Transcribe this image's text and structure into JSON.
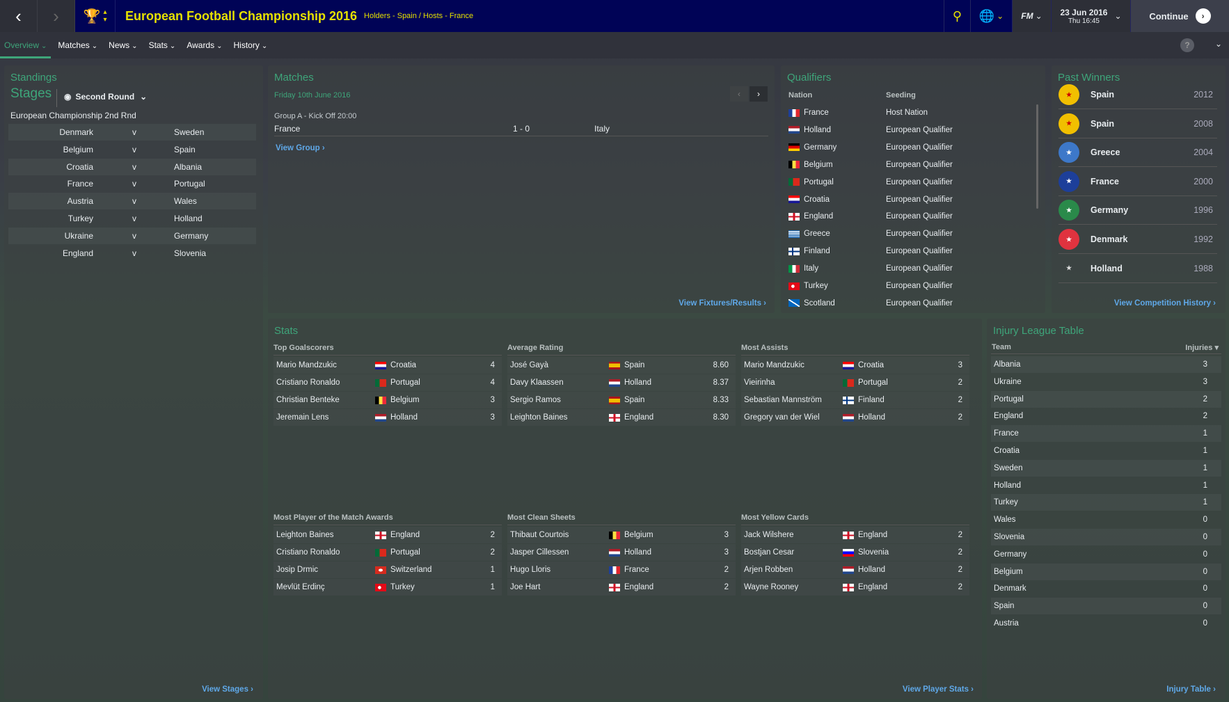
{
  "header": {
    "title": "European Football Championship 2016",
    "subtitle": "Holders - Spain / Hosts - France",
    "date": "23 Jun 2016",
    "time": "Thu 16:45",
    "continue_label": "Continue",
    "fm_label": "FM"
  },
  "tabs": [
    {
      "label": "Overview"
    },
    {
      "label": "Matches"
    },
    {
      "label": "News"
    },
    {
      "label": "Stats"
    },
    {
      "label": "Awards"
    },
    {
      "label": "History"
    }
  ],
  "colors": {
    "accent": "#3ea57a",
    "header_bg": "#000356",
    "title": "#e5e000",
    "link": "#5fa8e8"
  },
  "standings": {
    "title": "Standings",
    "stages_label": "Stages",
    "stage_select": "Second Round",
    "competition": "European Championship 2nd Rnd",
    "vs": "v",
    "fixtures": [
      [
        "Denmark",
        "Sweden"
      ],
      [
        "Belgium",
        "Spain"
      ],
      [
        "Croatia",
        "Albania"
      ],
      [
        "France",
        "Portugal"
      ],
      [
        "Austria",
        "Wales"
      ],
      [
        "Turkey",
        "Holland"
      ],
      [
        "Ukraine",
        "Germany"
      ],
      [
        "England",
        "Slovenia"
      ]
    ],
    "link": "View Stages"
  },
  "matches": {
    "title": "Matches",
    "date": "Friday 10th June 2016",
    "group": "Group A - Kick Off 20:00",
    "home": "France",
    "score": "1 - 0",
    "away": "Italy",
    "view_group": "View Group",
    "link": "View Fixtures/Results"
  },
  "qualifiers": {
    "title": "Qualifiers",
    "col_nation": "Nation",
    "col_seeding": "Seeding",
    "rows": [
      [
        "France",
        "Host Nation"
      ],
      [
        "Holland",
        "European Qualifier"
      ],
      [
        "Germany",
        "European Qualifier"
      ],
      [
        "Belgium",
        "European Qualifier"
      ],
      [
        "Portugal",
        "European Qualifier"
      ],
      [
        "Croatia",
        "European Qualifier"
      ],
      [
        "England",
        "European Qualifier"
      ],
      [
        "Greece",
        "European Qualifier"
      ],
      [
        "Finland",
        "European Qualifier"
      ],
      [
        "Italy",
        "European Qualifier"
      ],
      [
        "Turkey",
        "European Qualifier"
      ],
      [
        "Scotland",
        "European Qualifier"
      ]
    ]
  },
  "past_winners": {
    "title": "Past Winners",
    "rows": [
      [
        "Spain",
        "2012"
      ],
      [
        "Spain",
        "2008"
      ],
      [
        "Greece",
        "2004"
      ],
      [
        "France",
        "2000"
      ],
      [
        "Germany",
        "1996"
      ],
      [
        "Denmark",
        "1992"
      ],
      [
        "Holland",
        "1988"
      ]
    ],
    "link": "View Competition History"
  },
  "stats": {
    "title": "Stats",
    "link": "View Player Stats",
    "tables": [
      {
        "title": "Top Goalscorers",
        "rows": [
          [
            "Mario Mandzukic",
            "Croatia",
            "4"
          ],
          [
            "Cristiano Ronaldo",
            "Portugal",
            "4"
          ],
          [
            "Christian Benteke",
            "Belgium",
            "3"
          ],
          [
            "Jeremain Lens",
            "Holland",
            "3"
          ]
        ]
      },
      {
        "title": "Average Rating",
        "rows": [
          [
            "José Gayà",
            "Spain",
            "8.60"
          ],
          [
            "Davy Klaassen",
            "Holland",
            "8.37"
          ],
          [
            "Sergio Ramos",
            "Spain",
            "8.33"
          ],
          [
            "Leighton Baines",
            "England",
            "8.30"
          ]
        ]
      },
      {
        "title": "Most Assists",
        "rows": [
          [
            "Mario Mandzukic",
            "Croatia",
            "3"
          ],
          [
            "Vieirinha",
            "Portugal",
            "2"
          ],
          [
            "Sebastian Mannström",
            "Finland",
            "2"
          ],
          [
            "Gregory van der Wiel",
            "Holland",
            "2"
          ]
        ]
      },
      {
        "title": "Most Player of the Match Awards",
        "rows": [
          [
            "Leighton Baines",
            "England",
            "2"
          ],
          [
            "Cristiano Ronaldo",
            "Portugal",
            "2"
          ],
          [
            "Josip Drmic",
            "Switzerland",
            "1"
          ],
          [
            "Mevlüt Erdinç",
            "Turkey",
            "1"
          ]
        ]
      },
      {
        "title": "Most Clean Sheets",
        "rows": [
          [
            "Thibaut Courtois",
            "Belgium",
            "3"
          ],
          [
            "Jasper Cillessen",
            "Holland",
            "3"
          ],
          [
            "Hugo Lloris",
            "France",
            "2"
          ],
          [
            "Joe Hart",
            "England",
            "2"
          ]
        ]
      },
      {
        "title": "Most Yellow Cards",
        "rows": [
          [
            "Jack Wilshere",
            "England",
            "2"
          ],
          [
            "Bostjan Cesar",
            "Slovenia",
            "2"
          ],
          [
            "Arjen Robben",
            "Holland",
            "2"
          ],
          [
            "Wayne Rooney",
            "England",
            "2"
          ]
        ]
      }
    ]
  },
  "injury": {
    "title": "Injury League Table",
    "col_team": "Team",
    "col_injuries": "Injuries",
    "link": "Injury Table",
    "rows": [
      [
        "Albania",
        "3"
      ],
      [
        "Ukraine",
        "3"
      ],
      [
        "Portugal",
        "2"
      ],
      [
        "England",
        "2"
      ],
      [
        "France",
        "1"
      ],
      [
        "Croatia",
        "1"
      ],
      [
        "Sweden",
        "1"
      ],
      [
        "Holland",
        "1"
      ],
      [
        "Turkey",
        "1"
      ],
      [
        "Wales",
        "0"
      ],
      [
        "Slovenia",
        "0"
      ],
      [
        "Germany",
        "0"
      ],
      [
        "Belgium",
        "0"
      ],
      [
        "Denmark",
        "0"
      ],
      [
        "Spain",
        "0"
      ],
      [
        "Austria",
        "0"
      ]
    ]
  }
}
